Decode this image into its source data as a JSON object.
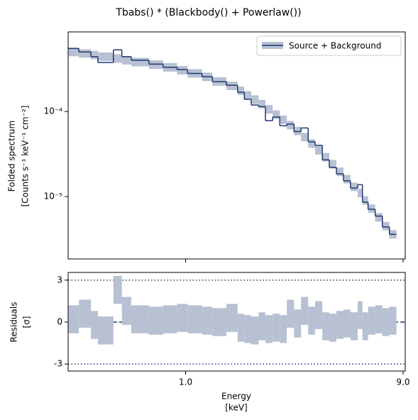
{
  "chart_data": {
    "type": "spectrum",
    "title": "Tbabs() * (Blackbody() + Powerlaw())",
    "ylabel": [
      "Folded spectrum",
      "[Counts s⁻¹ keV⁻¹ cm⁻²]"
    ],
    "xlabel": [
      "Energy",
      "[keV]"
    ],
    "residual_ylabel": [
      "Residuals",
      "[σ]"
    ],
    "xscale": "log",
    "yscale": "log",
    "legend": "upper right",
    "xlim": [
      0.305,
      9.2
    ],
    "ylim": [
      1.85e-06,
      0.00086
    ],
    "yticks": [
      {
        "value": 0.0001,
        "label": "10⁻⁴"
      },
      {
        "value": 1e-05,
        "label": "10⁻⁵"
      }
    ],
    "xticks": [
      {
        "value": 1,
        "label": "1.0"
      },
      {
        "value": 9,
        "label": "9.0"
      }
    ],
    "residual_ylim": [
      -3.5,
      3.55
    ],
    "residual_yticks": [
      3,
      0,
      -3
    ],
    "hlines": [
      {
        "y": 3,
        "style": "dotted"
      },
      {
        "y": 0,
        "style": "dashed"
      },
      {
        "y": -3,
        "style": "dotted"
      }
    ],
    "edges": [
      0.305,
      0.34,
      0.384,
      0.412,
      0.482,
      0.525,
      0.577,
      0.69,
      0.796,
      0.918,
      1.02,
      1.18,
      1.31,
      1.51,
      1.69,
      1.81,
      1.94,
      2.09,
      2.24,
      2.41,
      2.59,
      2.78,
      2.99,
      3.21,
      3.45,
      3.7,
      3.98,
      4.27,
      4.59,
      4.93,
      5.29,
      5.69,
      5.97,
      6.32,
      6.79,
      7.3,
      7.84,
      8.42
    ],
    "series": [
      {
        "name": "Source + Background",
        "color": "#1f3a6e",
        "band_color": "#b8c0d3",
        "values": [
          0.00055,
          0.0005,
          0.00044,
          0.000376,
          0.00053,
          0.00044,
          0.0004,
          0.00036,
          0.00033,
          0.00031,
          0.00028,
          0.000256,
          0.000224,
          0.000203,
          0.000168,
          0.000139,
          0.000119,
          0.000114,
          7.8e-05,
          8.6e-05,
          6.8e-05,
          7.1e-05,
          5.8e-05,
          6.4e-05,
          4.4e-05,
          4e-05,
          2.7e-05,
          2.2e-05,
          1.85e-05,
          1.53e-05,
          1.26e-05,
          1.38e-05,
          8.6e-06,
          7.1e-06,
          5.9e-06,
          4.4e-06,
          3.6e-06
        ],
        "model": [
          0.0005,
          0.00048,
          0.00046,
          0.00044,
          0.00042,
          0.0004,
          0.00038,
          0.000355,
          0.00033,
          0.000305,
          0.00028,
          0.000255,
          0.000225,
          0.0002,
          0.000175,
          0.000155,
          0.000138,
          0.000122,
          0.000106,
          9.2e-05,
          8e-05,
          6.9e-05,
          5.9e-05,
          5e-05,
          4.2e-05,
          3.5e-05,
          2.9e-05,
          2.4e-05,
          1.95e-05,
          1.6e-05,
          1.3e-05,
          1.1e-05,
          9e-06,
          7.2e-06,
          5.7e-06,
          4.5e-06,
          3.6e-06
        ],
        "residuals": [
          0.2,
          0.6,
          -0.2,
          -0.6,
          2.3,
          0.8,
          0.2,
          0.1,
          0.2,
          0.3,
          0.2,
          0.1,
          0,
          0.3,
          -0.4,
          -0.5,
          -0.6,
          -0.3,
          -0.5,
          -0.4,
          -0.5,
          0.6,
          -0.1,
          0.8,
          0.1,
          0.5,
          -0.3,
          -0.4,
          -0.2,
          -0.1,
          -0.3,
          0.5,
          -0.3,
          0.1,
          0.2,
          0.0,
          0.1
        ],
        "residual_error": 1
      }
    ]
  }
}
